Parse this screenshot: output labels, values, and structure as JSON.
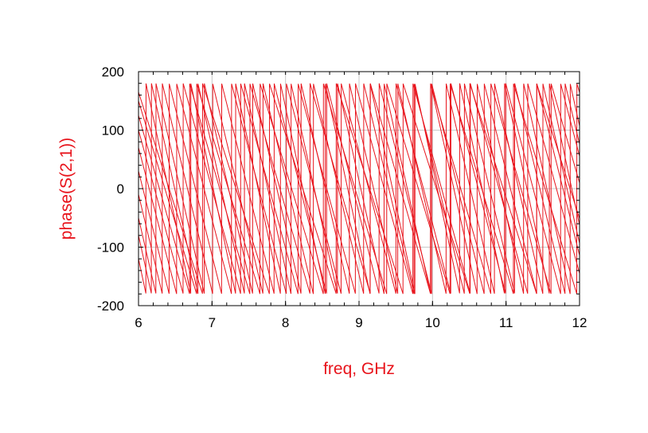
{
  "chart_data": {
    "type": "line",
    "title": "",
    "xlabel": "freq, GHz",
    "ylabel": "phase(S(2,1))",
    "xlim": [
      6,
      12
    ],
    "ylim": [
      -200,
      200
    ],
    "x_ticks": [
      6,
      7,
      8,
      9,
      10,
      11,
      12
    ],
    "y_ticks": [
      -200,
      -100,
      0,
      100,
      200
    ],
    "x_tick_labels": [
      "6",
      "7",
      "8",
      "9",
      "10",
      "11",
      "12"
    ],
    "y_tick_labels": [
      "-200",
      "-100",
      "0",
      "100",
      "200"
    ],
    "grid": true,
    "legend": "none",
    "wrap_range": [
      -180,
      180
    ],
    "series": [
      {
        "phase_at_start": 165,
        "delay_ns": 1.1
      },
      {
        "phase_at_start": 150,
        "delay_ns": 1.16
      },
      {
        "phase_at_start": 125,
        "delay_ns": 1.22
      },
      {
        "phase_at_start": 100,
        "delay_ns": 1.28
      },
      {
        "phase_at_start": 70,
        "delay_ns": 1.34
      },
      {
        "phase_at_start": 30,
        "delay_ns": 1.4
      },
      {
        "phase_at_start": -10,
        "delay_ns": 1.46
      },
      {
        "phase_at_start": -50,
        "delay_ns": 1.52
      },
      {
        "phase_at_start": -80,
        "delay_ns": 1.58
      },
      {
        "phase_at_start": -120,
        "delay_ns": 1.64
      }
    ],
    "colors": {
      "trace": "#e8141c",
      "grid": "#c8c8c8",
      "frame": "#000000",
      "label": "#e8141c"
    }
  }
}
